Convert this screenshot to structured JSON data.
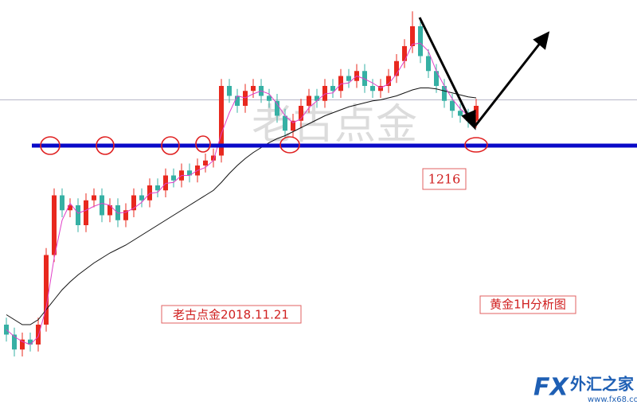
{
  "chart_data": {
    "type": "candlestick",
    "title": "黄金1H分析图",
    "subtitle": "老古点金2018.11.21",
    "watermark": "老古点金",
    "level": 1216,
    "level_color": "#0a0ac8",
    "price_line": 1220.6,
    "ylim": [
      1189.92,
      1230.64
    ],
    "up_color": "#e8281e",
    "down_color": "#36b0a4",
    "open": [
      1198,
      1197,
      1195.5,
      1196.5,
      1196,
      1198,
      1205,
      1211,
      1209.5,
      1210,
      1208,
      1210.5,
      1211,
      1209,
      1210,
      1208.5,
      1209.5,
      1211,
      1210.5,
      1212,
      1211.5,
      1213,
      1212.5,
      1213.5,
      1213,
      1214,
      1214.5,
      1215,
      1222,
      1221,
      1220,
      1221.5,
      1222,
      1221,
      1220.5,
      1219,
      1217.5,
      1218.5,
      1220,
      1221,
      1220.5,
      1222,
      1221.5,
      1223,
      1222.5,
      1223.5,
      1222,
      1221.5,
      1222,
      1223,
      1224.5,
      1226,
      1228,
      1225,
      1223.5,
      1222,
      1220.5,
      1219.5,
      1219,
      1218.5
    ],
    "high": [
      1198.7,
      1197.7,
      1197.2,
      1197.2,
      1198.7,
      1205.7,
      1211.7,
      1211.7,
      1210.7,
      1210.7,
      1211.2,
      1211.7,
      1211.7,
      1210.7,
      1210.7,
      1210.2,
      1211.7,
      1211.7,
      1212.7,
      1212.7,
      1213.7,
      1213.7,
      1214.2,
      1214.2,
      1214.7,
      1215.2,
      1215.7,
      1222.7,
      1222.7,
      1221.7,
      1222.2,
      1222.7,
      1222.7,
      1221.7,
      1221.2,
      1219.7,
      1219.2,
      1220.7,
      1221.7,
      1221.7,
      1222.7,
      1222.7,
      1223.7,
      1223.7,
      1224.2,
      1224.2,
      1222.7,
      1222.7,
      1223.7,
      1225.2,
      1226.7,
      1229.5,
      1228.7,
      1225.7,
      1224.2,
      1222.7,
      1221.2,
      1220.2,
      1219.7,
      1220.7
    ],
    "low": [
      1196.3,
      1194.8,
      1194.8,
      1195.3,
      1195.3,
      1197.3,
      1204.3,
      1208.8,
      1208.8,
      1207.3,
      1207.3,
      1209.8,
      1208.3,
      1208.3,
      1207.8,
      1207.8,
      1208.8,
      1209.8,
      1209.8,
      1210.8,
      1210.8,
      1211.8,
      1211.8,
      1212.3,
      1212.3,
      1213.3,
      1213.8,
      1214.3,
      1220.3,
      1219.3,
      1219.3,
      1220.8,
      1220.3,
      1219.8,
      1218.3,
      1216.8,
      1216.8,
      1217.8,
      1219.3,
      1219.8,
      1219.8,
      1220.8,
      1220.8,
      1221.8,
      1221.8,
      1221.3,
      1220.8,
      1220.8,
      1221.3,
      1222.3,
      1223.8,
      1225.3,
      1224.3,
      1222.8,
      1221.3,
      1219.8,
      1218.8,
      1218.3,
      1217.8,
      1217.8
    ],
    "close": [
      1197,
      1195.5,
      1196.5,
      1196,
      1198,
      1205,
      1211,
      1209.5,
      1210,
      1208,
      1210.5,
      1211,
      1209,
      1210,
      1208.5,
      1209.5,
      1211,
      1210.5,
      1212,
      1211.5,
      1213,
      1212.5,
      1213.5,
      1213,
      1214,
      1214.5,
      1215,
      1222,
      1221,
      1220,
      1221.5,
      1222,
      1221,
      1220.5,
      1219,
      1217.5,
      1218.5,
      1220,
      1221,
      1220.5,
      1222,
      1221.5,
      1223,
      1222.5,
      1223.5,
      1222,
      1221.5,
      1222,
      1223,
      1224.5,
      1226,
      1228,
      1225,
      1223.5,
      1222,
      1220.5,
      1219.5,
      1219,
      1218.5,
      1220
    ],
    "ma_lines": [
      {
        "color": "#111111",
        "values": [
          1199,
          1198.5,
          1198,
          1198,
          1198.5,
          1199.5,
          1200.5,
          1201.5,
          1202.3,
          1203,
          1203.6,
          1204.2,
          1204.7,
          1205.2,
          1205.6,
          1206,
          1206.5,
          1207,
          1207.5,
          1208,
          1208.5,
          1209,
          1209.5,
          1210,
          1210.5,
          1211,
          1211.5,
          1212.3,
          1213.2,
          1214,
          1214.7,
          1215.3,
          1215.8,
          1216.3,
          1216.7,
          1217,
          1217.4,
          1217.8,
          1218.2,
          1218.6,
          1219,
          1219.3,
          1219.6,
          1219.9,
          1220.1,
          1220.3,
          1220.5,
          1220.6,
          1220.8,
          1221,
          1221.3,
          1221.6,
          1221.8,
          1221.8,
          1221.7,
          1221.5,
          1221.3,
          1221.1,
          1220.9,
          1220.8
        ]
      },
      {
        "color": "#e040c8",
        "values": [
          1197.5,
          1196.8,
          1196.3,
          1196,
          1196.8,
          1199.7,
          1204.7,
          1208.5,
          1210.2,
          1209.2,
          1209.5,
          1209.9,
          1210.2,
          1210,
          1209.2,
          1209.3,
          1209.7,
          1210.3,
          1211.2,
          1211.3,
          1212.2,
          1212.3,
          1213,
          1213,
          1213.5,
          1213.8,
          1214.5,
          1217.2,
          1219.3,
          1221,
          1220.8,
          1221.2,
          1221.5,
          1221.2,
          1220.2,
          1219,
          1218.3,
          1218.7,
          1219.8,
          1220.5,
          1221.2,
          1221.3,
          1222.2,
          1222.3,
          1223,
          1222.7,
          1222.3,
          1221.8,
          1222.2,
          1223.2,
          1224.5,
          1226.2,
          1226.3,
          1225.5,
          1223.5,
          1222,
          1220.7,
          1219.7,
          1219,
          1219.2
        ]
      }
    ],
    "logo": {
      "brand": "FX",
      "name": "外汇之家",
      "url": "www.fx68.com"
    }
  }
}
